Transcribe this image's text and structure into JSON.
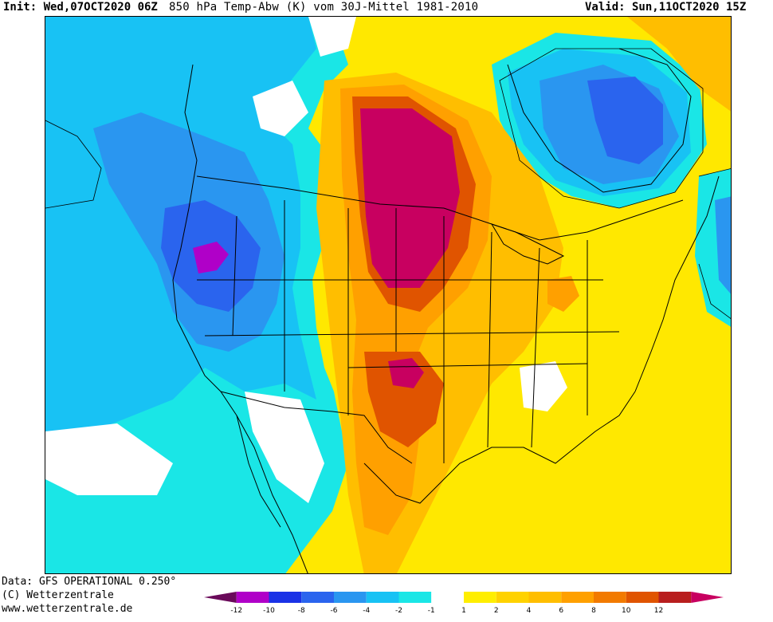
{
  "header": {
    "init": "Init: Wed,07OCT2020 06Z",
    "title": "850 hPa Temp-Abw (K) vom 30J-Mittel 1981-2010",
    "valid": "Valid: Sun,11OCT2020 15Z"
  },
  "footer": {
    "data": "Data: GFS OPERATIONAL 0.250°",
    "copyright": "(C) Wetterzentrale",
    "url": "www.wetterzentrale.de"
  },
  "legend": {
    "bins": [
      {
        "color": "#6a0a5a"
      },
      {
        "color": "#b000c8"
      },
      {
        "color": "#1a32e6"
      },
      {
        "color": "#2a64ee"
      },
      {
        "color": "#2a96f0"
      },
      {
        "color": "#18c2f4"
      },
      {
        "color": "#1ae6e6"
      },
      {
        "color": "#ffffff"
      },
      {
        "color": "#ffee00"
      },
      {
        "color": "#ffd200"
      },
      {
        "color": "#ffbe00"
      },
      {
        "color": "#ffa000"
      },
      {
        "color": "#f27a00"
      },
      {
        "color": "#e05400"
      },
      {
        "color": "#b81e1e"
      },
      {
        "color": "#c80060"
      }
    ],
    "ticks": [
      {
        "label": "-12",
        "value": -12
      },
      {
        "label": "-10",
        "value": -10
      },
      {
        "label": "-8",
        "value": -8
      },
      {
        "label": "-6",
        "value": -6
      },
      {
        "label": "-4",
        "value": -4
      },
      {
        "label": "-2",
        "value": -2
      },
      {
        "label": "-1",
        "value": -1
      },
      {
        "label": "1",
        "value": 1
      },
      {
        "label": "2",
        "value": 2
      },
      {
        "label": "4",
        "value": 4
      },
      {
        "label": "6",
        "value": 6
      },
      {
        "label": "8",
        "value": 8
      },
      {
        "label": "10",
        "value": 10
      },
      {
        "label": "12",
        "value": 12
      }
    ]
  },
  "anomaly_colors": {
    "cold_extreme": "#b000c8",
    "cold_strong": "#2a64ee",
    "cold_moderate": "#2a96f0",
    "cold_weak": "#18c2f4",
    "cold_slight": "#1ae6e6",
    "neutral": "#ffffff",
    "warm_slight": "#ffee00",
    "warm_weak": "#ffd200",
    "warm_moderate": "#ffbe00",
    "warm_strong": "#f27a00",
    "warm_very_strong": "#e05400",
    "warm_extreme": "#c80060",
    "boundary_lines": "#000000"
  }
}
